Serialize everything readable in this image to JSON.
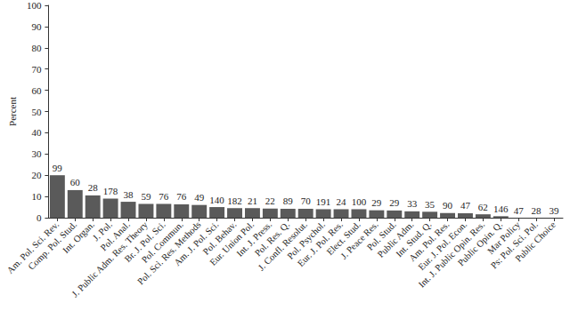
{
  "chart_data": {
    "type": "bar",
    "y_label": "Percent",
    "categories": [
      "Am. Pol. Sci. Rev.",
      "Comp. Pol. Stud.",
      "Int. Organ.",
      "J. Pol.",
      "Pol. Anal.",
      "J. Public Adm. Res. Theory",
      "Br. J. Pol. Sci.",
      "Pol. Commun.",
      "Pol. Sci. Res. Methods",
      "Am. J. Pol. Sci.",
      "Pol. Behav.",
      "Eur. Union Pol.",
      "Int. J. Press.",
      "Pol. Res. Q.",
      "J. Confl. Resolut.",
      "Pol. Psychol.",
      "Eur. J. Pol. Res.",
      "Elect. Stud.",
      "J. Peace Res.",
      "Pol. Stud.",
      "Public Adm.",
      "Int. Stud. Q.",
      "Am. Pol. Res.",
      "Eur. J. Pol. Econ.",
      "Int. J. Public Opin. Res.",
      "Public Opin. Q.",
      "Mar Policy",
      "Ps: Pol. Sci. Pol.",
      "Public Choice"
    ],
    "values": [
      20,
      13,
      10.5,
      9,
      7.5,
      6.5,
      6.5,
      6.3,
      6,
      5,
      4.5,
      4.5,
      4.3,
      4.2,
      4.2,
      4,
      4,
      4,
      3.5,
      3.4,
      3,
      2.8,
      2.2,
      2.1,
      1.6,
      0.7,
      0,
      0,
      0
    ],
    "counts": [
      99,
      60,
      28,
      178,
      38,
      59,
      76,
      76,
      49,
      140,
      182,
      21,
      22,
      89,
      70,
      191,
      24,
      100,
      29,
      29,
      33,
      35,
      90,
      47,
      62,
      146,
      47,
      28,
      39
    ],
    "color": "#5a5a5a",
    "ylim": [
      0,
      100
    ],
    "yticks": [
      0,
      10,
      20,
      30,
      40,
      50,
      60,
      70,
      80,
      90,
      100
    ],
    "grid": false
  }
}
